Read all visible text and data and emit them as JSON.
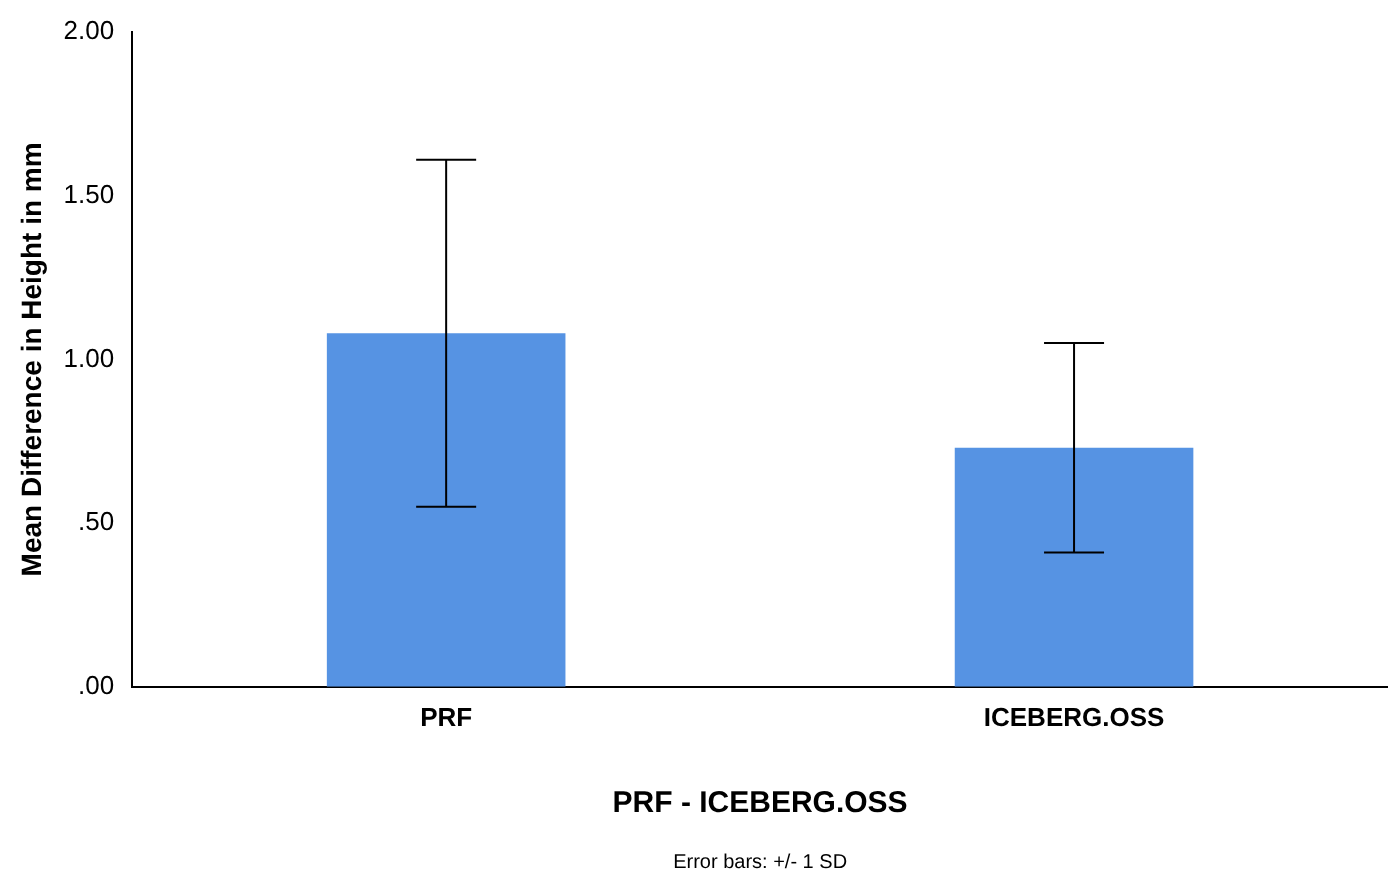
{
  "chart_data": {
    "type": "bar",
    "xlabel": "PRF - ICEBERG.OSS",
    "ylabel": "Mean Difference in Height in mm",
    "categories": [
      "PRF",
      "ICEBERG.OSS"
    ],
    "values": [
      1.08,
      0.73
    ],
    "errors": [
      0.53,
      0.32
    ],
    "color": "#5693e3",
    "ylim": [
      0,
      2
    ],
    "yticks": [
      {
        "value": 0,
        "label": ".00"
      },
      {
        "value": 0.5,
        "label": ".50"
      },
      {
        "value": 1,
        "label": "1.00"
      },
      {
        "value": 1.5,
        "label": "1.50"
      },
      {
        "value": 2,
        "label": "2.00"
      }
    ],
    "grid": false,
    "legend": false,
    "annotations": [
      "Error bars: +/- 1 SD"
    ]
  }
}
